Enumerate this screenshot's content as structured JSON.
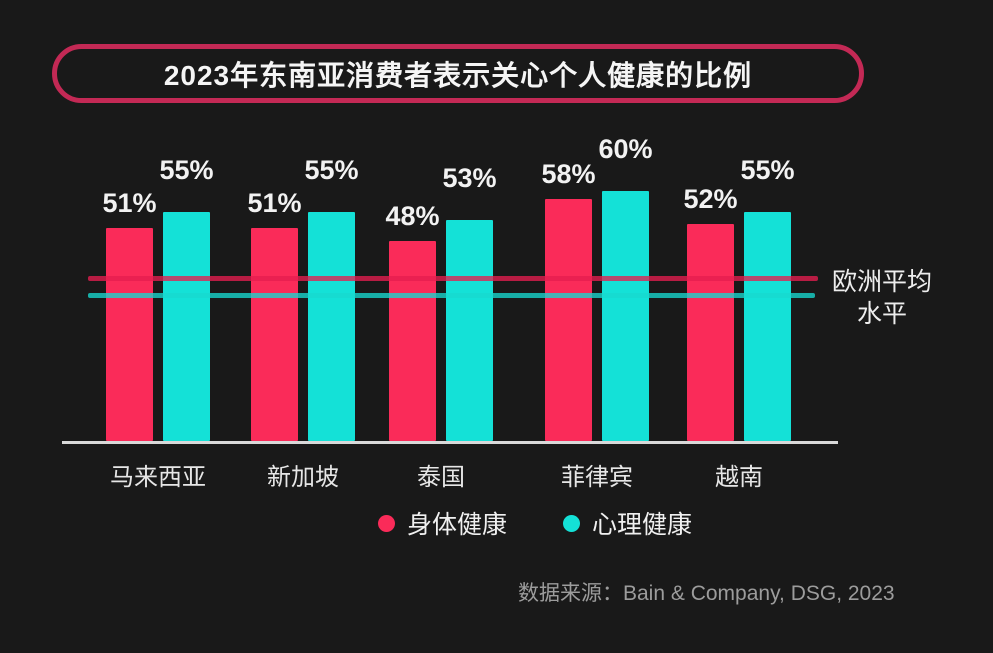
{
  "title": "2023年东南亚消费者表示关心个人健康的比例",
  "chart_data": {
    "type": "bar",
    "title": "2023年东南亚消费者表示关心个人健康的比例",
    "categories": [
      "马来西亚",
      "新加坡",
      "泰国",
      "菲律宾",
      "越南"
    ],
    "series": [
      {
        "name": "身体健康",
        "color": "#fa2b59",
        "values": [
          51,
          51,
          48,
          58,
          52
        ]
      },
      {
        "name": "心理健康",
        "color": "#14e1d7",
        "values": [
          55,
          55,
          53,
          60,
          55
        ]
      }
    ],
    "value_suffix": "%",
    "ylim": [
      0,
      70
    ],
    "grid": false,
    "legend_position": "bottom",
    "reference_lines": [
      {
        "series": "身体健康",
        "value_estimated": 39,
        "color": "#e61e50",
        "label": "欧洲平均水平"
      },
      {
        "series": "心理健康",
        "value_estimated": 35,
        "color": "#17d9d0",
        "label": "欧洲平均水平"
      }
    ],
    "reference_label_lines": [
      "欧洲平均",
      "水平"
    ]
  },
  "source": "数据来源：Bain & Company, DSG, 2023",
  "colors": {
    "background": "#191919",
    "title_border": "#c32955",
    "axis": "#d9d9d9",
    "text": "#f2f2f2",
    "muted_text": "#9c9c9c"
  }
}
